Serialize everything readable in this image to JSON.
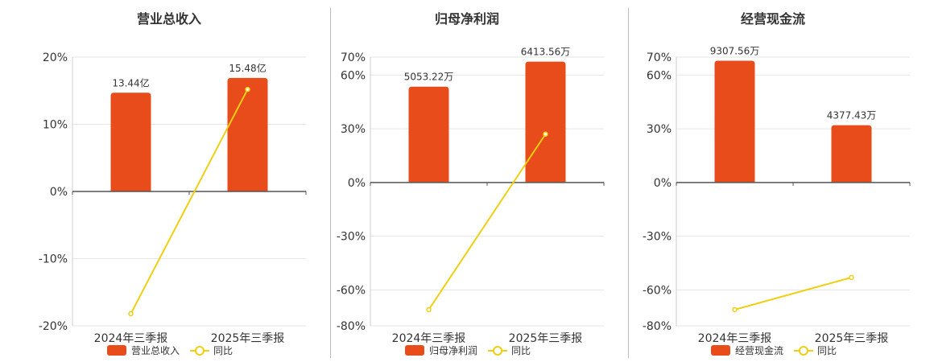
{
  "colors": {
    "bar": "#e84c1a",
    "line": "#f0cf12",
    "axis": "#555555",
    "grid": "#e6e6e6"
  },
  "chart_data": [
    {
      "type": "bar",
      "title": "营业总收入",
      "categories": [
        "2024年三季报",
        "2025年三季报"
      ],
      "ylim": [
        -20,
        20
      ],
      "yticks": [
        20,
        10,
        0,
        -10,
        -20
      ],
      "ytick_labels": [
        "20%",
        "10%",
        "0%",
        "-10%",
        "-20%"
      ],
      "grid": true,
      "legend_position": "bottom",
      "series": [
        {
          "name": "营业总收入",
          "kind": "bar",
          "values": [
            14.7,
            16.9
          ],
          "labels": [
            "13.44亿",
            "15.48亿"
          ]
        },
        {
          "name": "同比",
          "kind": "line",
          "values": [
            -18.2,
            15.2
          ]
        }
      ]
    },
    {
      "type": "bar",
      "title": "归母净利润",
      "categories": [
        "2024年三季报",
        "2025年三季报"
      ],
      "ylim": [
        -80,
        70
      ],
      "yticks": [
        70,
        60,
        30,
        0,
        -30,
        -60,
        -80
      ],
      "ytick_labels": [
        "70%",
        "60%",
        "30%",
        "0%",
        "-30%",
        "-60%",
        "-80%"
      ],
      "grid": true,
      "legend_position": "bottom",
      "series": [
        {
          "name": "归母净利润",
          "kind": "bar",
          "values": [
            53.5,
            67.5
          ],
          "labels": [
            "5053.22万",
            "6413.56万"
          ]
        },
        {
          "name": "同比",
          "kind": "line",
          "values": [
            -71,
            27
          ]
        }
      ]
    },
    {
      "type": "bar",
      "title": "经营现金流",
      "categories": [
        "2024年三季报",
        "2025年三季报"
      ],
      "ylim": [
        -80,
        70
      ],
      "yticks": [
        70,
        60,
        30,
        0,
        -30,
        -60,
        -80
      ],
      "ytick_labels": [
        "70%",
        "60%",
        "30%",
        "0%",
        "-30%",
        "-60%",
        "-80%"
      ],
      "grid": true,
      "legend_position": "bottom",
      "series": [
        {
          "name": "经营现金流",
          "kind": "bar",
          "values": [
            68,
            32
          ],
          "labels": [
            "9307.56万",
            "4377.43万"
          ]
        },
        {
          "name": "同比",
          "kind": "line",
          "values": [
            -71,
            -53
          ]
        }
      ]
    }
  ]
}
